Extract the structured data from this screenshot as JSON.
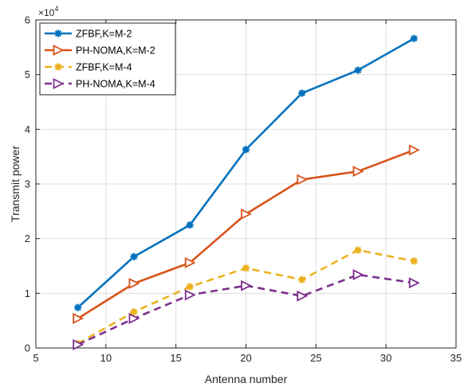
{
  "chart_data": {
    "type": "line",
    "title": "",
    "xlabel": "Antenna number",
    "ylabel": "Transmit power",
    "xlim": [
      5,
      35
    ],
    "ylim": [
      0,
      6
    ],
    "y_multiplier_label": "×10",
    "y_multiplier_exponent": "4",
    "x_ticks": [
      5,
      10,
      15,
      20,
      25,
      30,
      35
    ],
    "y_ticks": [
      0,
      1,
      2,
      3,
      4,
      5,
      6
    ],
    "grid": true,
    "legend_position": "top-left",
    "x": [
      8,
      12,
      16,
      20,
      24,
      28,
      32
    ],
    "series": [
      {
        "name": "ZFBF,K=M-2",
        "values": [
          0.74,
          1.67,
          2.25,
          3.63,
          4.66,
          5.08,
          5.66
        ],
        "color": "#0072BD",
        "line": "solid",
        "marker": "asterisk"
      },
      {
        "name": "PH-NOMA,K=M-2",
        "values": [
          0.54,
          1.18,
          1.56,
          2.45,
          3.08,
          3.23,
          3.62
        ],
        "color": "#D95319",
        "line": "solid",
        "marker": "triangle-right"
      },
      {
        "name": "ZFBF,K=M-4",
        "values": [
          0.08,
          0.66,
          1.12,
          1.46,
          1.25,
          1.79,
          1.59
        ],
        "color": "#EDB120",
        "line": "dashed",
        "marker": "asterisk"
      },
      {
        "name": "PH-NOMA,K=M-4",
        "values": [
          0.06,
          0.54,
          0.97,
          1.14,
          0.95,
          1.34,
          1.19
        ],
        "color": "#7E2F8E",
        "line": "dashed",
        "marker": "triangle-right"
      }
    ]
  }
}
